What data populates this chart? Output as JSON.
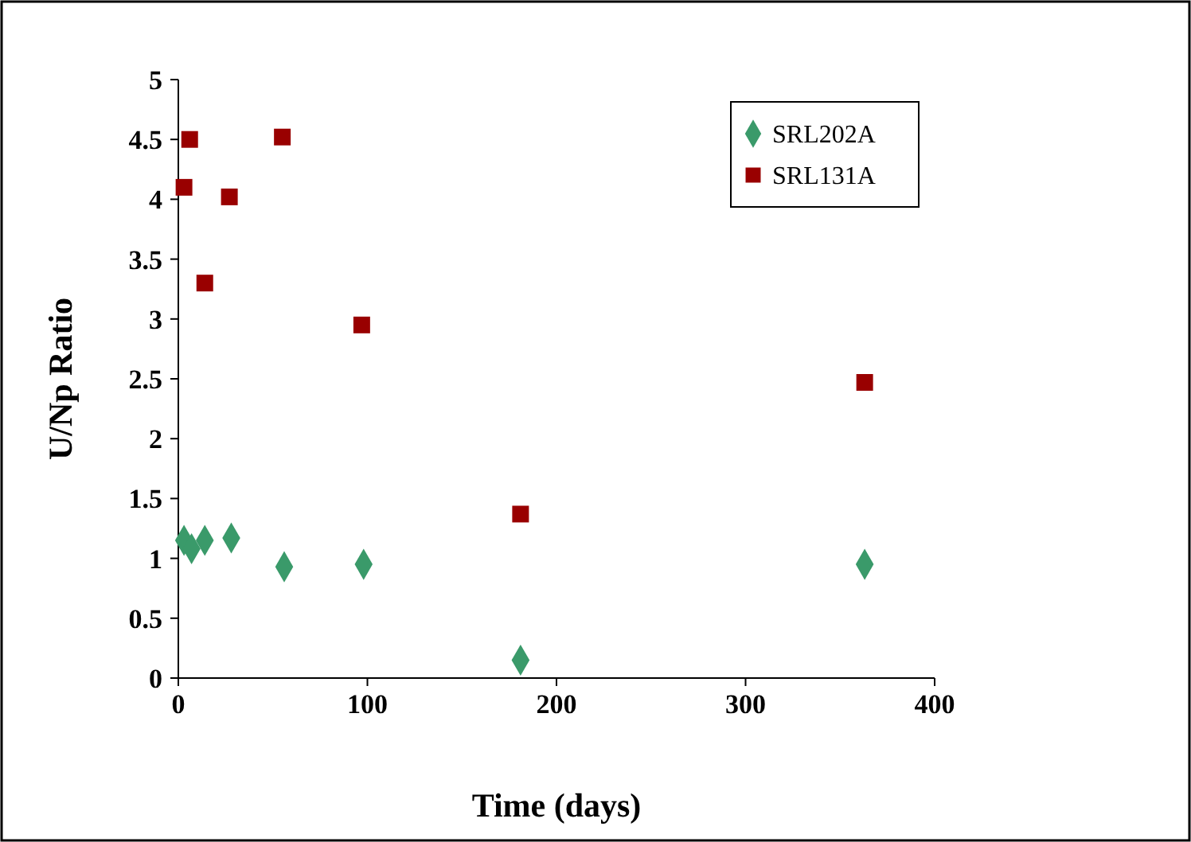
{
  "chart_data": {
    "type": "scatter",
    "xlabel": "Time (days)",
    "ylabel": "U/Np Ratio",
    "xlim": [
      0,
      400
    ],
    "xticks": [
      0,
      100,
      200,
      300,
      400
    ],
    "ylim": [
      0,
      5
    ],
    "yticks": [
      0,
      0.5,
      1,
      1.5,
      2,
      2.5,
      3,
      3.5,
      4,
      4.5,
      5
    ],
    "grid": false,
    "legend": "top right",
    "series": [
      {
        "name": "SRL202A",
        "color": "#3a9a6a",
        "marker": "diamond",
        "x": [
          3,
          7,
          14,
          28,
          56,
          98,
          181,
          363
        ],
        "values": [
          1.15,
          1.08,
          1.15,
          1.17,
          0.93,
          0.95,
          0.15,
          0.95
        ]
      },
      {
        "name": "SRL131A",
        "color": "#990000",
        "marker": "square",
        "x": [
          3,
          6,
          14,
          27,
          55,
          97,
          181,
          363
        ],
        "values": [
          4.1,
          4.5,
          3.3,
          4.02,
          4.52,
          2.95,
          1.37,
          2.47
        ]
      }
    ]
  }
}
